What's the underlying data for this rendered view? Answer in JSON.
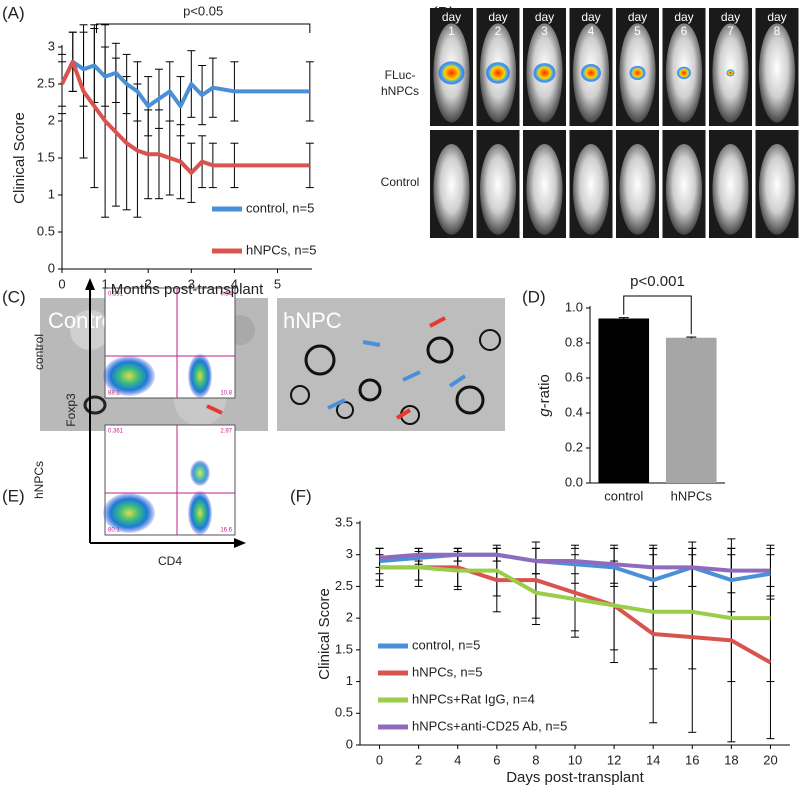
{
  "panel_labels": [
    "(A)",
    "(B)",
    "(C)",
    "(D)",
    "(E)",
    "(F)"
  ],
  "chart_data": [
    {
      "type": "line",
      "annotation": "p<0.05",
      "x_label": "Months post-transplant",
      "y_label": "Clinical Score",
      "x": [
        0,
        0.25,
        0.5,
        0.75,
        1,
        1.25,
        1.5,
        1.75,
        2,
        2.25,
        2.5,
        2.75,
        3,
        3.25,
        3.5,
        4,
        5.75
      ],
      "series": [
        {
          "name": "control, n=5",
          "color": "#4a90d9",
          "values": [
            2.5,
            2.8,
            2.7,
            2.75,
            2.6,
            2.65,
            2.5,
            2.4,
            2.2,
            2.3,
            2.4,
            2.2,
            2.5,
            2.35,
            2.45,
            2.4,
            2.4
          ],
          "errors": [
            0.3,
            0.4,
            0.5,
            0.5,
            0.4,
            0.4,
            0.4,
            0.4,
            0.4,
            0.4,
            0.4,
            0.4,
            0.45,
            0.4,
            0.4,
            0.4,
            0.4
          ]
        },
        {
          "name": "hNPCs, n=5",
          "color": "#d9534f",
          "values": [
            2.5,
            2.8,
            2.4,
            2.2,
            2.0,
            1.85,
            1.7,
            1.6,
            1.55,
            1.55,
            1.5,
            1.45,
            1.3,
            1.45,
            1.4,
            1.4,
            1.4
          ],
          "errors": [
            0.4,
            0.4,
            0.9,
            1.1,
            1.3,
            1.0,
            0.9,
            0.9,
            0.6,
            0.6,
            0.5,
            0.5,
            0.4,
            0.35,
            0.3,
            0.3,
            0.3
          ]
        }
      ],
      "xlim": [
        0,
        5.8
      ],
      "xticks": [
        0,
        1,
        2,
        3,
        4,
        5
      ],
      "ylim": [
        0,
        3
      ],
      "yticks": [
        0,
        0.5,
        1,
        1.5,
        2,
        2.5,
        3
      ],
      "legend": "lower right"
    },
    {
      "type": "bar",
      "annotation": "p<0.001",
      "y_label": "g-ratio",
      "categories": [
        "control",
        "hNPCs"
      ],
      "values": [
        0.94,
        0.83
      ],
      "errors": [
        0.005,
        0.004
      ],
      "colors": [
        "#000000",
        "#a6a6a6"
      ],
      "ylim": [
        0,
        1
      ],
      "yticks": [
        {
          "value": 0,
          "label": "0.0"
        },
        0.2,
        0.4,
        0.6,
        0.8,
        {
          "value": 1,
          "label": "1.0"
        }
      ]
    },
    {
      "type": "line",
      "x_label": "Days post-transplant",
      "y_label": "Clinical Score",
      "x": [
        0,
        2,
        4,
        6,
        8,
        10,
        12,
        14,
        16,
        18,
        20
      ],
      "series": [
        {
          "name": "control, n=5",
          "color": "#4a90d9",
          "values": [
            2.9,
            2.95,
            3,
            3,
            2.9,
            2.85,
            2.8,
            2.6,
            2.8,
            2.6,
            2.7
          ],
          "errors": [
            0.2,
            0.1,
            0.1,
            0.1,
            0.2,
            0.3,
            0.3,
            0.5,
            0.3,
            0.5,
            0.4
          ]
        },
        {
          "name": "hNPCs, n=5",
          "color": "#d9534f",
          "values": [
            2.8,
            2.8,
            2.8,
            2.6,
            2.6,
            2.4,
            2.2,
            1.75,
            1.7,
            1.65,
            1.3
          ],
          "errors": [
            0.3,
            0.3,
            0.3,
            0.5,
            0.6,
            0.6,
            0.9,
            1.4,
            1.5,
            1.6,
            1.2
          ]
        },
        {
          "name": "hNPCs+Rat IgG, n=4",
          "color": "#9acd4a",
          "values": [
            2.8,
            2.8,
            2.75,
            2.75,
            2.4,
            2.3,
            2.2,
            2.1,
            2.1,
            2.0,
            2.0
          ],
          "errors": [
            0.2,
            0.2,
            0.3,
            0.4,
            0.5,
            0.6,
            0.7,
            0.9,
            0.9,
            1.0,
            1.0
          ]
        },
        {
          "name": "hNPCs+anti-CD25 Ab, n=5",
          "color": "#8e6bbf",
          "values": [
            2.95,
            3,
            3,
            3,
            2.9,
            2.9,
            2.85,
            2.8,
            2.8,
            2.75,
            2.75
          ],
          "errors": [
            0.15,
            0.1,
            0.1,
            0.1,
            0.2,
            0.2,
            0.3,
            0.3,
            0.3,
            0.35,
            0.4
          ]
        }
      ],
      "xlim": [
        -1,
        21
      ],
      "xticks": [
        0,
        2,
        4,
        6,
        8,
        10,
        12,
        14,
        16,
        18,
        20
      ],
      "ylim": [
        0,
        3.5
      ],
      "yticks": [
        0,
        0.5,
        1,
        1.5,
        2,
        2.5,
        3,
        3.5
      ],
      "legend": "lower left"
    }
  ],
  "panel_b": {
    "days": [
      {
        "word": "day",
        "number": "1"
      },
      {
        "word": "day",
        "number": "2"
      },
      {
        "word": "day",
        "number": "3"
      },
      {
        "word": "day",
        "number": "4"
      },
      {
        "word": "day",
        "number": "5"
      },
      {
        "word": "day",
        "number": "6"
      },
      {
        "word": "day",
        "number": "7"
      },
      {
        "word": "day",
        "number": "8"
      }
    ],
    "rows": [
      [
        "FLuc-",
        "hNPCs"
      ],
      [
        "Control"
      ]
    ]
  },
  "panel_c": {
    "images": [
      "Control",
      "hNPC"
    ]
  },
  "panel_e": {
    "x_label": "CD4",
    "y_label": "Foxp3",
    "plots": [
      {
        "row_label": "control",
        "quadrants": [
          "0.391",
          "0.54",
          "88.2",
          "10.8"
        ]
      },
      {
        "row_label": "hNPCs",
        "quadrants": [
          "0.361",
          "2.97",
          "80.1",
          "16.6"
        ]
      }
    ]
  }
}
